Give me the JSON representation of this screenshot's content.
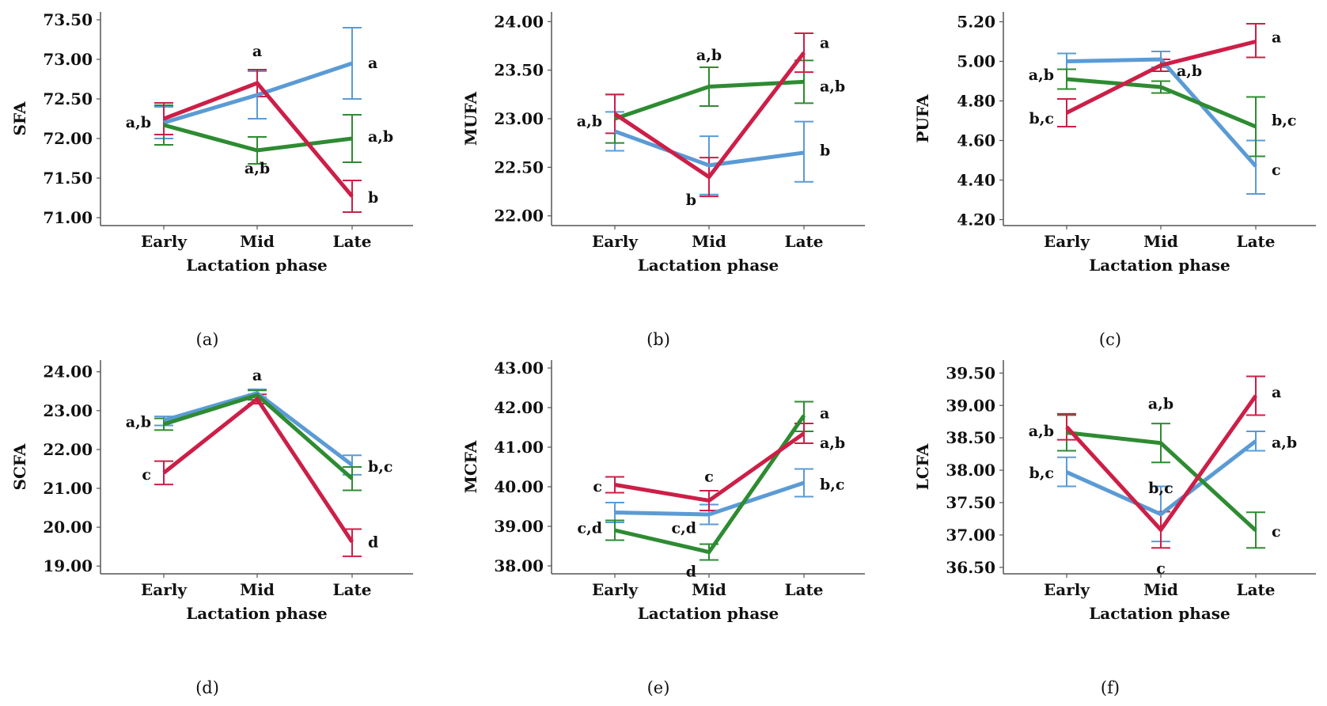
{
  "figure_caption_note": "",
  "chart_data": [
    {
      "id": "a",
      "type": "line",
      "caption": "(a)",
      "ylabel": "SFA",
      "xlabel": "Lactation phase",
      "categories": [
        "Early",
        "Mid",
        "Late"
      ],
      "ylim": [
        70.9,
        73.6
      ],
      "yticks": [
        71.0,
        71.5,
        72.0,
        72.5,
        73.0,
        73.5
      ],
      "ytick_labels": [
        "71.00",
        "71.50",
        "72.00",
        "72.50",
        "73.00",
        "73.50"
      ],
      "series": [
        {
          "color": "#5b9bd5",
          "values": [
            72.2,
            72.55,
            72.95
          ],
          "err_low": [
            72.0,
            72.25,
            72.5
          ],
          "err_high": [
            72.4,
            72.85,
            73.4
          ]
        },
        {
          "color": "#2e8b32",
          "values": [
            72.17,
            71.85,
            72.0
          ],
          "err_low": [
            71.92,
            71.68,
            71.7
          ],
          "err_high": [
            72.42,
            72.02,
            72.3
          ]
        },
        {
          "color": "#cc1f47",
          "values": [
            72.25,
            72.7,
            71.27
          ],
          "err_low": [
            72.05,
            72.53,
            71.07
          ],
          "err_high": [
            72.45,
            72.87,
            71.47
          ]
        }
      ],
      "annotations": [
        {
          "text": "a,b",
          "cat": 0,
          "y": 72.2,
          "side": "left"
        },
        {
          "text": "a",
          "cat": 1,
          "y": 73.1,
          "side": "center"
        },
        {
          "text": "a,b",
          "cat": 1,
          "y": 71.62,
          "side": "center"
        },
        {
          "text": "a",
          "cat": 2,
          "y": 72.95,
          "side": "right"
        },
        {
          "text": "a,b",
          "cat": 2,
          "y": 72.02,
          "side": "right"
        },
        {
          "text": "b",
          "cat": 2,
          "y": 71.25,
          "side": "right"
        }
      ]
    },
    {
      "id": "b",
      "type": "line",
      "caption": "(b)",
      "ylabel": "MUFA",
      "xlabel": "Lactation phase",
      "categories": [
        "Early",
        "Mid",
        "Late"
      ],
      "ylim": [
        21.9,
        24.1
      ],
      "yticks": [
        22.0,
        22.5,
        23.0,
        23.5,
        24.0
      ],
      "ytick_labels": [
        "22.00",
        "22.50",
        "23.00",
        "23.50",
        "24.00"
      ],
      "series": [
        {
          "color": "#5b9bd5",
          "values": [
            22.87,
            22.52,
            22.65
          ],
          "err_low": [
            22.67,
            22.22,
            22.35
          ],
          "err_high": [
            23.07,
            22.82,
            22.97
          ]
        },
        {
          "color": "#2e8b32",
          "values": [
            23.0,
            23.33,
            23.38
          ],
          "err_low": [
            22.75,
            23.13,
            23.16
          ],
          "err_high": [
            23.25,
            23.53,
            23.6
          ]
        },
        {
          "color": "#cc1f47",
          "values": [
            23.05,
            22.4,
            23.68
          ],
          "err_low": [
            22.85,
            22.2,
            23.48
          ],
          "err_high": [
            23.25,
            22.6,
            23.88
          ]
        }
      ],
      "annotations": [
        {
          "text": "a,b",
          "cat": 0,
          "y": 22.97,
          "side": "left"
        },
        {
          "text": "a,b",
          "cat": 1,
          "y": 23.65,
          "side": "center"
        },
        {
          "text": "b",
          "cat": 1,
          "y": 22.16,
          "side": "left"
        },
        {
          "text": "a",
          "cat": 2,
          "y": 23.78,
          "side": "right"
        },
        {
          "text": "a,b",
          "cat": 2,
          "y": 23.33,
          "side": "right"
        },
        {
          "text": "b",
          "cat": 2,
          "y": 22.67,
          "side": "right"
        }
      ]
    },
    {
      "id": "c",
      "type": "line",
      "caption": "(c)",
      "ylabel": "PUFA",
      "xlabel": "Lactation phase",
      "categories": [
        "Early",
        "Mid",
        "Late"
      ],
      "ylim": [
        4.17,
        5.25
      ],
      "yticks": [
        4.2,
        4.4,
        4.6,
        4.8,
        5.0,
        5.2
      ],
      "ytick_labels": [
        "4.20",
        "4.40",
        "4.60",
        "4.80",
        "5.00",
        "5.20"
      ],
      "series": [
        {
          "color": "#5b9bd5",
          "values": [
            5.0,
            5.01,
            4.47
          ],
          "err_low": [
            4.96,
            4.97,
            4.33
          ],
          "err_high": [
            5.04,
            5.05,
            4.6
          ]
        },
        {
          "color": "#2e8b32",
          "values": [
            4.91,
            4.87,
            4.67
          ],
          "err_low": [
            4.86,
            4.84,
            4.52
          ],
          "err_high": [
            4.96,
            4.9,
            4.82
          ]
        },
        {
          "color": "#cc1f47",
          "values": [
            4.74,
            4.98,
            5.1
          ],
          "err_low": [
            4.67,
            4.95,
            5.02
          ],
          "err_high": [
            4.81,
            5.01,
            5.19
          ]
        }
      ],
      "annotations": [
        {
          "text": "a,b",
          "cat": 0,
          "y": 4.93,
          "side": "left"
        },
        {
          "text": "b,c",
          "cat": 0,
          "y": 4.71,
          "side": "left"
        },
        {
          "text": "a,b",
          "cat": 1,
          "y": 4.95,
          "side": "right"
        },
        {
          "text": "a",
          "cat": 2,
          "y": 5.12,
          "side": "right"
        },
        {
          "text": "b,c",
          "cat": 2,
          "y": 4.7,
          "side": "right"
        },
        {
          "text": "c",
          "cat": 2,
          "y": 4.45,
          "side": "right"
        }
      ]
    },
    {
      "id": "d",
      "type": "line",
      "caption": "(d)",
      "ylabel": "SCFA",
      "xlabel": "Lactation phase",
      "categories": [
        "Early",
        "Mid",
        "Late"
      ],
      "ylim": [
        18.8,
        24.3
      ],
      "yticks": [
        19.0,
        20.0,
        21.0,
        22.0,
        23.0,
        24.0
      ],
      "ytick_labels": [
        "19.00",
        "20.00",
        "21.00",
        "22.00",
        "23.00",
        "24.00"
      ],
      "series": [
        {
          "color": "#5b9bd5",
          "values": [
            22.75,
            23.45,
            21.6
          ],
          "err_low": [
            22.62,
            23.35,
            21.35
          ],
          "err_high": [
            22.85,
            23.55,
            21.85
          ]
        },
        {
          "color": "#2e8b32",
          "values": [
            22.65,
            23.4,
            21.25
          ],
          "err_low": [
            22.5,
            23.28,
            20.95
          ],
          "err_high": [
            22.8,
            23.52,
            21.55
          ]
        },
        {
          "color": "#cc1f47",
          "values": [
            21.4,
            23.3,
            19.62
          ],
          "err_low": [
            21.1,
            23.18,
            19.25
          ],
          "err_high": [
            21.7,
            23.42,
            19.95
          ]
        }
      ],
      "annotations": [
        {
          "text": "a,b",
          "cat": 0,
          "y": 22.7,
          "side": "left"
        },
        {
          "text": "c",
          "cat": 0,
          "y": 21.35,
          "side": "left"
        },
        {
          "text": "a",
          "cat": 1,
          "y": 23.9,
          "side": "center"
        },
        {
          "text": "b,c",
          "cat": 2,
          "y": 21.55,
          "side": "right"
        },
        {
          "text": "d",
          "cat": 2,
          "y": 19.6,
          "side": "right"
        }
      ]
    },
    {
      "id": "e",
      "type": "line",
      "caption": "(e)",
      "ylabel": "MCFA",
      "xlabel": "Lactation phase",
      "categories": [
        "Early",
        "Mid",
        "Late"
      ],
      "ylim": [
        37.8,
        43.2
      ],
      "yticks": [
        38.0,
        39.0,
        40.0,
        41.0,
        42.0,
        43.0
      ],
      "ytick_labels": [
        "38.00",
        "39.00",
        "40.00",
        "41.00",
        "42.00",
        "43.00"
      ],
      "series": [
        {
          "color": "#5b9bd5",
          "values": [
            39.35,
            39.3,
            40.1
          ],
          "err_low": [
            39.1,
            39.05,
            39.75
          ],
          "err_high": [
            39.6,
            39.55,
            40.45
          ]
        },
        {
          "color": "#2e8b32",
          "values": [
            38.9,
            38.35,
            41.8
          ],
          "err_low": [
            38.65,
            38.15,
            41.4
          ],
          "err_high": [
            39.15,
            38.55,
            42.15
          ]
        },
        {
          "color": "#cc1f47",
          "values": [
            40.05,
            39.65,
            41.35
          ],
          "err_low": [
            39.85,
            39.4,
            41.1
          ],
          "err_high": [
            40.25,
            39.9,
            41.6
          ]
        }
      ],
      "annotations": [
        {
          "text": "c",
          "cat": 0,
          "y": 40.0,
          "side": "left"
        },
        {
          "text": "c,d",
          "cat": 0,
          "y": 38.95,
          "side": "left"
        },
        {
          "text": "c",
          "cat": 1,
          "y": 40.25,
          "side": "center"
        },
        {
          "text": "c,d",
          "cat": 1,
          "y": 38.95,
          "side": "left"
        },
        {
          "text": "d",
          "cat": 1,
          "y": 37.85,
          "side": "left"
        },
        {
          "text": "a",
          "cat": 2,
          "y": 41.85,
          "side": "right"
        },
        {
          "text": "a,b",
          "cat": 2,
          "y": 41.1,
          "side": "right"
        },
        {
          "text": "b,c",
          "cat": 2,
          "y": 40.05,
          "side": "right"
        }
      ]
    },
    {
      "id": "f",
      "type": "line",
      "caption": "(f)",
      "ylabel": "LCFA",
      "xlabel": "Lactation phase",
      "categories": [
        "Early",
        "Mid",
        "Late"
      ],
      "ylim": [
        36.4,
        39.7
      ],
      "yticks": [
        36.5,
        37.0,
        37.5,
        38.0,
        38.5,
        39.0,
        39.5
      ],
      "ytick_labels": [
        "36.50",
        "37.00",
        "37.50",
        "38.00",
        "38.50",
        "39.00",
        "39.50"
      ],
      "series": [
        {
          "color": "#5b9bd5",
          "values": [
            37.97,
            37.32,
            38.45
          ],
          "err_low": [
            37.75,
            36.9,
            38.3
          ],
          "err_high": [
            38.2,
            37.75,
            38.6
          ]
        },
        {
          "color": "#2e8b32",
          "values": [
            38.58,
            38.42,
            37.07
          ],
          "err_low": [
            38.3,
            38.12,
            36.8
          ],
          "err_high": [
            38.85,
            38.72,
            37.35
          ]
        },
        {
          "color": "#cc1f47",
          "values": [
            38.67,
            37.08,
            39.15
          ],
          "err_low": [
            38.47,
            36.8,
            38.85
          ],
          "err_high": [
            38.87,
            37.36,
            39.45
          ]
        }
      ],
      "annotations": [
        {
          "text": "a,b",
          "cat": 0,
          "y": 38.6,
          "side": "left"
        },
        {
          "text": "b,c",
          "cat": 0,
          "y": 37.95,
          "side": "left"
        },
        {
          "text": "a,b",
          "cat": 1,
          "y": 39.02,
          "side": "center"
        },
        {
          "text": "b,c",
          "cat": 1,
          "y": 37.72,
          "side": "center"
        },
        {
          "text": "c",
          "cat": 1,
          "y": 36.48,
          "side": "center"
        },
        {
          "text": "a",
          "cat": 2,
          "y": 39.2,
          "side": "right"
        },
        {
          "text": "a,b",
          "cat": 2,
          "y": 38.42,
          "side": "right"
        },
        {
          "text": "c",
          "cat": 2,
          "y": 37.05,
          "side": "right"
        }
      ]
    }
  ]
}
